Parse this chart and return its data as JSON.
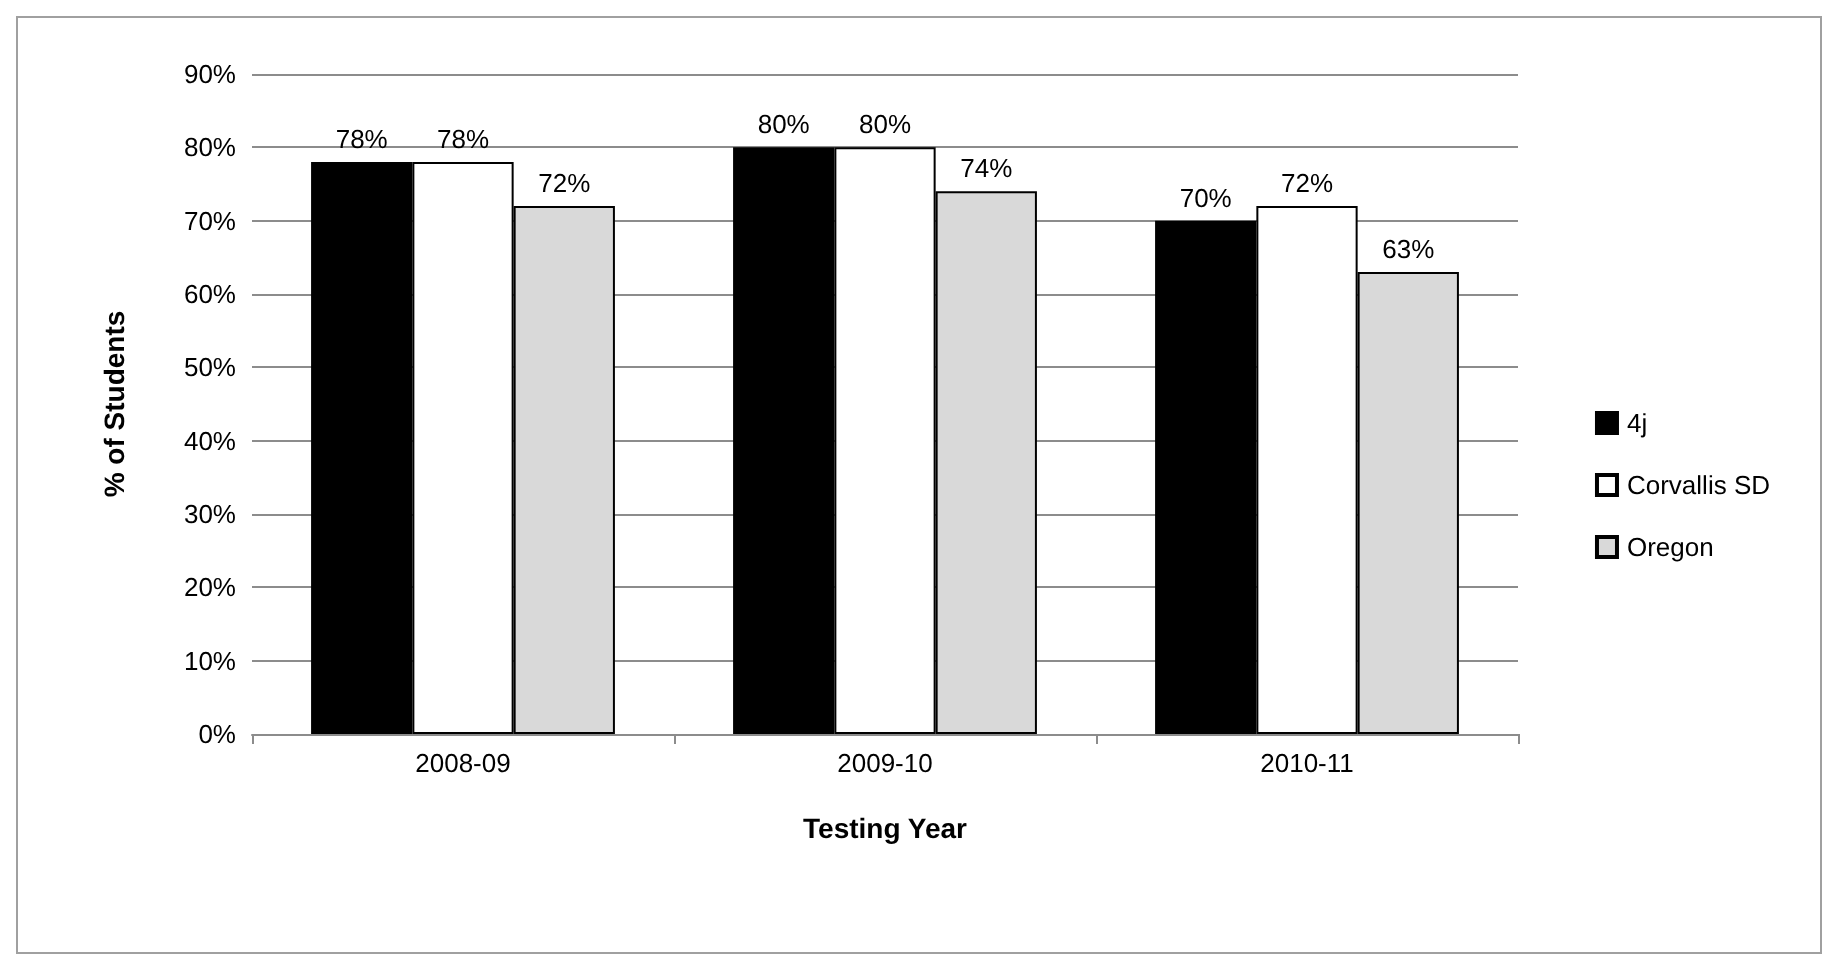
{
  "chart_data": {
    "type": "bar",
    "xlabel": "Testing Year",
    "ylabel": "% of Students",
    "categories": [
      "2008-09",
      "2009-10",
      "2010-11"
    ],
    "series": [
      {
        "name": "4j",
        "color": "#000000",
        "values": [
          78,
          80,
          70
        ],
        "value_labels": [
          "78%",
          "80%",
          "70%"
        ]
      },
      {
        "name": "Corvallis SD",
        "color": "#ffffff",
        "values": [
          78,
          80,
          72
        ],
        "value_labels": [
          "78%",
          "80%",
          "72%"
        ]
      },
      {
        "name": "Oregon",
        "color": "#d9d9d9",
        "values": [
          72,
          74,
          63
        ],
        "value_labels": [
          "72%",
          "74%",
          "63%"
        ]
      }
    ],
    "ylim": [
      0,
      90
    ],
    "yticks": [
      {
        "value": 0,
        "label": "0%"
      },
      {
        "value": 10,
        "label": "10%"
      },
      {
        "value": 20,
        "label": "20%"
      },
      {
        "value": 30,
        "label": "30%"
      },
      {
        "value": 40,
        "label": "40%"
      },
      {
        "value": 50,
        "label": "50%"
      },
      {
        "value": 60,
        "label": "60%"
      },
      {
        "value": 70,
        "label": "70%"
      },
      {
        "value": 80,
        "label": "80%"
      },
      {
        "value": 90,
        "label": "90%"
      }
    ],
    "grid": "y",
    "legend": "right"
  }
}
